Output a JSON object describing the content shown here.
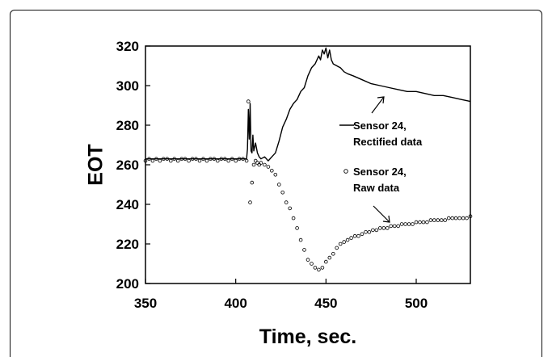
{
  "chart_data": {
    "type": "line",
    "xlabel": "Time, sec.",
    "ylabel": "EOT",
    "xlim": [
      350,
      530
    ],
    "ylim": [
      200,
      320
    ],
    "xticks": [
      350,
      400,
      450,
      500
    ],
    "yticks": [
      200,
      220,
      240,
      260,
      280,
      300,
      320
    ],
    "grid": false,
    "legend_placement": "inside-right",
    "series": [
      {
        "name": "Sensor 24, Rectified data",
        "style": "line",
        "color": "#000000",
        "legend_lines": [
          "Sensor 24,",
          "Rectified data"
        ],
        "x": [
          350,
          360,
          370,
          380,
          390,
          400,
          406,
          406.5,
          407,
          407.5,
          408,
          408.5,
          409,
          409.5,
          410,
          411,
          412,
          413,
          414,
          416,
          418,
          420,
          422,
          424,
          426,
          428,
          430,
          432,
          434,
          436,
          438,
          440,
          442,
          444,
          446,
          447,
          448,
          449,
          450,
          451,
          452,
          453,
          454,
          456,
          458,
          460,
          462,
          465,
          470,
          475,
          480,
          485,
          490,
          495,
          500,
          505,
          510,
          515,
          520,
          525,
          530
        ],
        "y": [
          263,
          263,
          263,
          263,
          263,
          263,
          263,
          268,
          288,
          273,
          291,
          267,
          266,
          275,
          267,
          271,
          266,
          264,
          263,
          264,
          262,
          264,
          266,
          272,
          279,
          283,
          288,
          291,
          293,
          297,
          299,
          305,
          309,
          311,
          315,
          313,
          318,
          316,
          319,
          314,
          318,
          313,
          311,
          310,
          309,
          307,
          306,
          305,
          303,
          301,
          300,
          299,
          298,
          297,
          297,
          296,
          295,
          295,
          294,
          293,
          292
        ]
      },
      {
        "name": "Sensor 24, Raw data",
        "style": "markers",
        "color": "#000000",
        "legend_lines": [
          "Sensor 24,",
          "Raw data"
        ],
        "x": [
          350,
          352,
          354,
          356,
          358,
          360,
          362,
          364,
          366,
          368,
          370,
          372,
          374,
          376,
          378,
          380,
          382,
          384,
          386,
          388,
          390,
          392,
          394,
          396,
          398,
          400,
          402,
          404,
          406,
          407,
          408,
          409,
          410,
          411,
          412,
          413,
          414,
          416,
          418,
          420,
          422,
          424,
          426,
          428,
          430,
          432,
          434,
          436,
          438,
          440,
          442,
          444,
          446,
          448,
          450,
          452,
          454,
          456,
          458,
          460,
          462,
          464,
          466,
          468,
          470,
          472,
          474,
          476,
          478,
          480,
          482,
          484,
          486,
          488,
          490,
          492,
          494,
          496,
          498,
          500,
          502,
          504,
          506,
          508,
          510,
          512,
          514,
          516,
          518,
          520,
          522,
          524,
          526,
          528,
          530
        ],
        "y": [
          262,
          263,
          262,
          263,
          262,
          263,
          263,
          262,
          263,
          262,
          263,
          263,
          262,
          263,
          263,
          262,
          263,
          262,
          263,
          263,
          262,
          263,
          263,
          262,
          263,
          262,
          263,
          263,
          262,
          292,
          241,
          251,
          260,
          262,
          261,
          260,
          261,
          260,
          259,
          257,
          255,
          250,
          246,
          241,
          238,
          233,
          228,
          222,
          217,
          212,
          210,
          208,
          207,
          208,
          211,
          213,
          215,
          218,
          220,
          221,
          222,
          223,
          224,
          224,
          225,
          226,
          226,
          227,
          227,
          228,
          228,
          228,
          229,
          229,
          229,
          230,
          230,
          230,
          230,
          231,
          231,
          231,
          231,
          232,
          232,
          232,
          232,
          232,
          233,
          233,
          233,
          233,
          233,
          233,
          234
        ]
      }
    ]
  }
}
